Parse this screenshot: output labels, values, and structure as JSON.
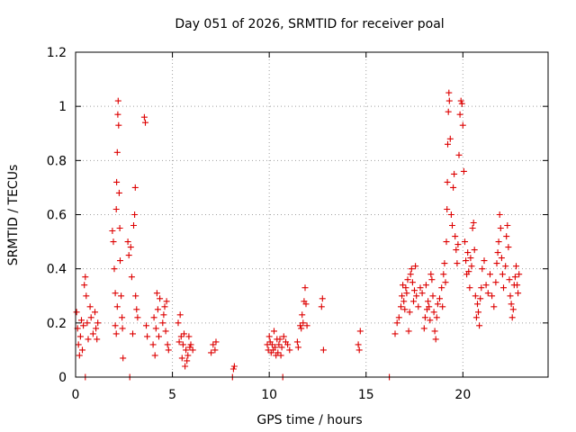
{
  "chart_data": {
    "type": "scatter",
    "title": "Day 051 of 2026, SRMTID for receiver poal",
    "xlabel": "GPS time / hours",
    "ylabel": "SRMTID / TECUs",
    "xlim": [
      0,
      24.4
    ],
    "ylim": [
      0,
      1.2
    ],
    "x_ticks": [
      0,
      5,
      10,
      15,
      20
    ],
    "x_tick_labels": [
      "0",
      "5",
      "10",
      "15",
      "20"
    ],
    "y_ticks": [
      0,
      0.2,
      0.4,
      0.6,
      0.8,
      1.0,
      1.2
    ],
    "y_tick_labels": [
      "0",
      "0.2",
      "0.4",
      "0.6",
      "0.8",
      "1",
      "1.2"
    ],
    "grid": true,
    "marker": "+",
    "series": [
      {
        "name": "SRMTID",
        "color": "#dd0000",
        "points": [
          [
            0.05,
            0.24
          ],
          [
            0.1,
            0.18
          ],
          [
            0.15,
            0.12
          ],
          [
            0.2,
            0.08
          ],
          [
            0.25,
            0.15
          ],
          [
            0.3,
            0.21
          ],
          [
            0.35,
            0.1
          ],
          [
            0.4,
            0.19
          ],
          [
            0.45,
            0.34
          ],
          [
            0.5,
            0.37
          ],
          [
            0.55,
            0.3
          ],
          [
            0.6,
            0.2
          ],
          [
            0.65,
            0.14
          ],
          [
            0.75,
            0.26
          ],
          [
            0.8,
            0.22
          ],
          [
            0.9,
            0.16
          ],
          [
            1.0,
            0.24
          ],
          [
            1.05,
            0.18
          ],
          [
            1.1,
            0.14
          ],
          [
            1.15,
            0.2
          ],
          [
            1.9,
            0.54
          ],
          [
            1.95,
            0.5
          ],
          [
            2.0,
            0.4
          ],
          [
            2.05,
            0.31
          ],
          [
            2.1,
            0.62
          ],
          [
            2.12,
            0.72
          ],
          [
            2.15,
            0.83
          ],
          [
            2.18,
            0.97
          ],
          [
            2.2,
            1.02
          ],
          [
            2.22,
            0.93
          ],
          [
            2.25,
            0.68
          ],
          [
            2.28,
            0.55
          ],
          [
            2.3,
            0.43
          ],
          [
            2.35,
            0.3
          ],
          [
            2.4,
            0.22
          ],
          [
            2.42,
            0.18
          ],
          [
            2.45,
            0.07
          ],
          [
            2.05,
            0.19
          ],
          [
            2.1,
            0.16
          ],
          [
            2.15,
            0.26
          ],
          [
            2.7,
            0.5
          ],
          [
            2.75,
            0.45
          ],
          [
            2.85,
            0.48
          ],
          [
            2.9,
            0.37
          ],
          [
            2.95,
            0.16
          ],
          [
            3.0,
            0.56
          ],
          [
            3.05,
            0.6
          ],
          [
            3.08,
            0.7
          ],
          [
            3.1,
            0.3
          ],
          [
            3.15,
            0.25
          ],
          [
            3.2,
            0.22
          ],
          [
            3.55,
            0.96
          ],
          [
            3.6,
            0.94
          ],
          [
            3.65,
            0.19
          ],
          [
            3.7,
            0.15
          ],
          [
            4.0,
            0.12
          ],
          [
            4.05,
            0.22
          ],
          [
            4.1,
            0.08
          ],
          [
            4.15,
            0.18
          ],
          [
            4.2,
            0.31
          ],
          [
            4.25,
            0.25
          ],
          [
            4.3,
            0.15
          ],
          [
            4.35,
            0.29
          ],
          [
            4.5,
            0.2
          ],
          [
            4.55,
            0.23
          ],
          [
            4.6,
            0.26
          ],
          [
            4.65,
            0.17
          ],
          [
            4.7,
            0.28
          ],
          [
            4.75,
            0.12
          ],
          [
            4.8,
            0.1
          ],
          [
            5.3,
            0.2
          ],
          [
            5.35,
            0.13
          ],
          [
            5.4,
            0.23
          ],
          [
            5.45,
            0.15
          ],
          [
            5.5,
            0.07
          ],
          [
            5.55,
            0.12
          ],
          [
            5.6,
            0.16
          ],
          [
            5.65,
            0.04
          ],
          [
            5.7,
            0.1
          ],
          [
            5.75,
            0.06
          ],
          [
            5.8,
            0.08
          ],
          [
            5.85,
            0.15
          ],
          [
            5.9,
            0.11
          ],
          [
            5.95,
            0.12
          ],
          [
            6.05,
            0.1
          ],
          [
            7.0,
            0.09
          ],
          [
            7.1,
            0.12
          ],
          [
            7.2,
            0.1
          ],
          [
            7.25,
            0.13
          ],
          [
            8.15,
            0.03
          ],
          [
            8.2,
            0.04
          ],
          [
            9.9,
            0.12
          ],
          [
            9.95,
            0.1
          ],
          [
            10.0,
            0.15
          ],
          [
            10.05,
            0.13
          ],
          [
            10.1,
            0.09
          ],
          [
            10.15,
            0.12
          ],
          [
            10.2,
            0.1
          ],
          [
            10.25,
            0.17
          ],
          [
            10.3,
            0.11
          ],
          [
            10.35,
            0.08
          ],
          [
            10.4,
            0.14
          ],
          [
            10.45,
            0.09
          ],
          [
            10.5,
            0.12
          ],
          [
            10.55,
            0.14
          ],
          [
            10.6,
            0.08
          ],
          [
            10.65,
            0.11
          ],
          [
            10.75,
            0.15
          ],
          [
            10.85,
            0.13
          ],
          [
            10.95,
            0.12
          ],
          [
            11.05,
            0.1
          ],
          [
            11.45,
            0.13
          ],
          [
            11.5,
            0.11
          ],
          [
            11.6,
            0.19
          ],
          [
            11.65,
            0.18
          ],
          [
            11.7,
            0.23
          ],
          [
            11.75,
            0.2
          ],
          [
            11.8,
            0.28
          ],
          [
            11.85,
            0.33
          ],
          [
            11.9,
            0.27
          ],
          [
            11.95,
            0.19
          ],
          [
            12.7,
            0.26
          ],
          [
            12.75,
            0.29
          ],
          [
            12.8,
            0.1
          ],
          [
            14.6,
            0.12
          ],
          [
            14.65,
            0.1
          ],
          [
            14.7,
            0.17
          ],
          [
            16.5,
            0.16
          ],
          [
            16.6,
            0.2
          ],
          [
            16.7,
            0.22
          ],
          [
            16.8,
            0.26
          ],
          [
            16.85,
            0.3
          ],
          [
            16.9,
            0.34
          ],
          [
            16.95,
            0.28
          ],
          [
            17.0,
            0.25
          ],
          [
            17.05,
            0.33
          ],
          [
            17.1,
            0.31
          ],
          [
            17.15,
            0.36
          ],
          [
            17.2,
            0.17
          ],
          [
            17.25,
            0.24
          ],
          [
            17.3,
            0.38
          ],
          [
            17.35,
            0.4
          ],
          [
            17.4,
            0.35
          ],
          [
            17.45,
            0.28
          ],
          [
            17.5,
            0.32
          ],
          [
            17.55,
            0.41
          ],
          [
            17.6,
            0.3
          ],
          [
            17.7,
            0.26
          ],
          [
            17.8,
            0.33
          ],
          [
            17.9,
            0.31
          ],
          [
            18.0,
            0.18
          ],
          [
            18.05,
            0.22
          ],
          [
            18.1,
            0.34
          ],
          [
            18.15,
            0.25
          ],
          [
            18.2,
            0.28
          ],
          [
            18.25,
            0.26
          ],
          [
            18.3,
            0.21
          ],
          [
            18.35,
            0.38
          ],
          [
            18.4,
            0.36
          ],
          [
            18.45,
            0.3
          ],
          [
            18.5,
            0.24
          ],
          [
            18.55,
            0.17
          ],
          [
            18.6,
            0.14
          ],
          [
            18.65,
            0.22
          ],
          [
            18.7,
            0.27
          ],
          [
            18.8,
            0.29
          ],
          [
            18.9,
            0.33
          ],
          [
            18.95,
            0.26
          ],
          [
            19.0,
            0.38
          ],
          [
            19.05,
            0.42
          ],
          [
            19.1,
            0.35
          ],
          [
            19.15,
            0.5
          ],
          [
            19.18,
            0.62
          ],
          [
            19.2,
            0.72
          ],
          [
            19.22,
            0.86
          ],
          [
            19.25,
            0.98
          ],
          [
            19.28,
            1.05
          ],
          [
            19.3,
            1.02
          ],
          [
            19.35,
            0.88
          ],
          [
            19.4,
            0.6
          ],
          [
            19.45,
            0.56
          ],
          [
            19.5,
            0.7
          ],
          [
            19.55,
            0.75
          ],
          [
            19.6,
            0.52
          ],
          [
            19.65,
            0.47
          ],
          [
            19.7,
            0.42
          ],
          [
            19.75,
            0.49
          ],
          [
            19.8,
            0.82
          ],
          [
            19.85,
            0.97
          ],
          [
            19.9,
            1.02
          ],
          [
            19.95,
            1.01
          ],
          [
            20.0,
            0.93
          ],
          [
            20.05,
            0.76
          ],
          [
            20.1,
            0.5
          ],
          [
            20.15,
            0.43
          ],
          [
            20.2,
            0.38
          ],
          [
            20.25,
            0.46
          ],
          [
            20.3,
            0.39
          ],
          [
            20.35,
            0.33
          ],
          [
            20.4,
            0.44
          ],
          [
            20.45,
            0.41
          ],
          [
            20.5,
            0.55
          ],
          [
            20.55,
            0.57
          ],
          [
            20.6,
            0.47
          ],
          [
            20.65,
            0.3
          ],
          [
            20.7,
            0.22
          ],
          [
            20.75,
            0.27
          ],
          [
            20.8,
            0.24
          ],
          [
            20.85,
            0.19
          ],
          [
            20.9,
            0.29
          ],
          [
            20.95,
            0.33
          ],
          [
            21.0,
            0.4
          ],
          [
            21.1,
            0.43
          ],
          [
            21.2,
            0.34
          ],
          [
            21.3,
            0.31
          ],
          [
            21.4,
            0.38
          ],
          [
            21.5,
            0.3
          ],
          [
            21.6,
            0.26
          ],
          [
            21.7,
            0.35
          ],
          [
            21.75,
            0.42
          ],
          [
            21.8,
            0.46
          ],
          [
            21.85,
            0.5
          ],
          [
            21.9,
            0.6
          ],
          [
            21.95,
            0.55
          ],
          [
            22.0,
            0.44
          ],
          [
            22.05,
            0.38
          ],
          [
            22.1,
            0.33
          ],
          [
            22.2,
            0.41
          ],
          [
            22.25,
            0.52
          ],
          [
            22.3,
            0.56
          ],
          [
            22.35,
            0.48
          ],
          [
            22.4,
            0.36
          ],
          [
            22.45,
            0.3
          ],
          [
            22.5,
            0.27
          ],
          [
            22.55,
            0.22
          ],
          [
            22.6,
            0.25
          ],
          [
            22.65,
            0.34
          ],
          [
            22.7,
            0.37
          ],
          [
            22.75,
            0.41
          ],
          [
            22.8,
            0.34
          ],
          [
            22.85,
            0.31
          ],
          [
            22.9,
            0.38
          ],
          [
            0.5,
            0.0
          ],
          [
            2.8,
            0.0
          ],
          [
            8.1,
            0.0
          ],
          [
            10.7,
            0.0
          ],
          [
            16.2,
            0.0
          ]
        ]
      }
    ]
  }
}
